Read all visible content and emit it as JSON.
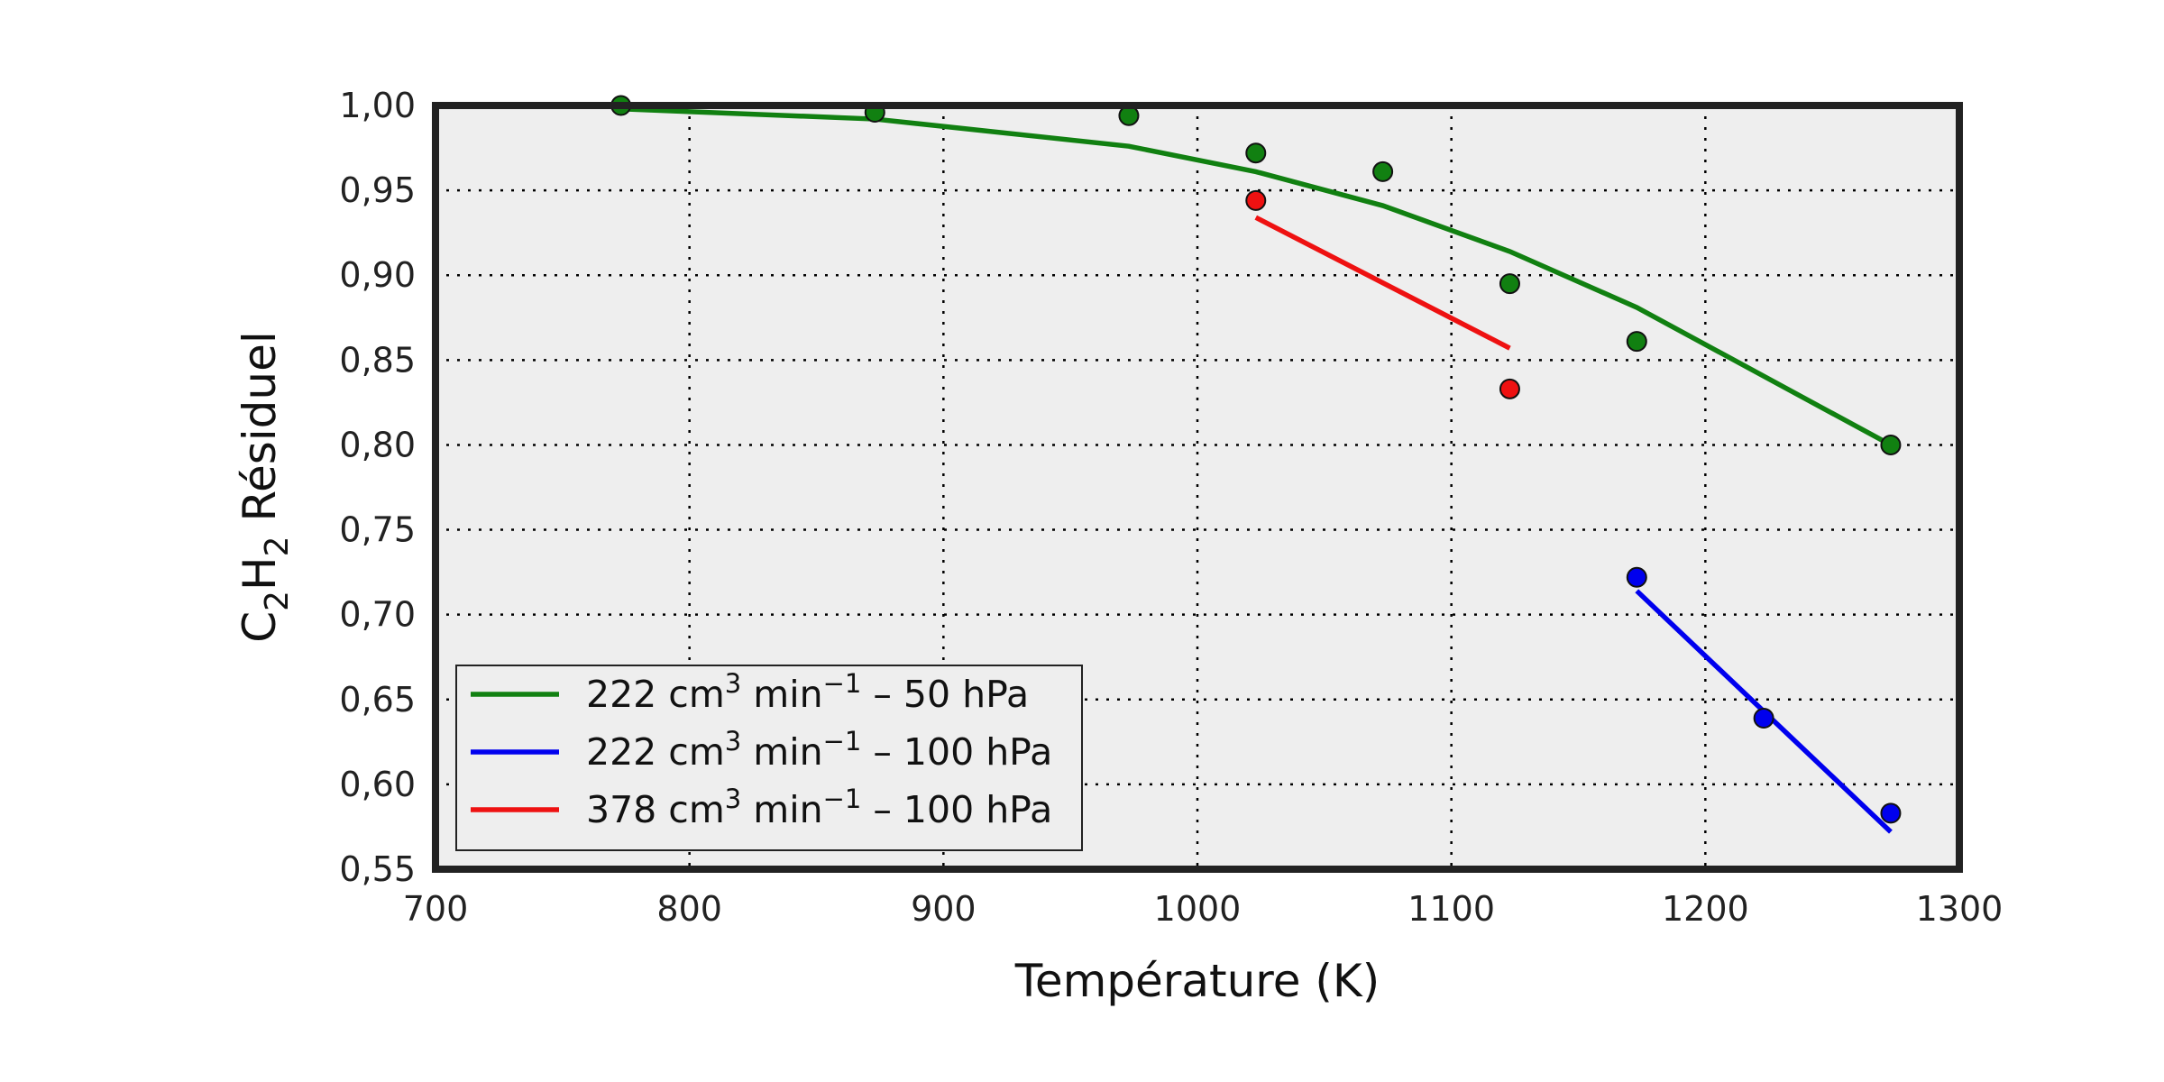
{
  "chart_data": {
    "type": "line",
    "xlabel": "Température (K)",
    "ylabel": "C₂H₂ Résiduel",
    "ylabel_parts": {
      "pre": "C",
      "sub1": "2",
      "mid": "H",
      "sub2": "2",
      "post": " Résiduel"
    },
    "xlim": [
      700,
      1300
    ],
    "ylim": [
      0.55,
      1.0
    ],
    "x_ticks": [
      700,
      800,
      900,
      1000,
      1100,
      1200,
      1300
    ],
    "x_tick_labels": [
      "700",
      "800",
      "900",
      "1000",
      "1100",
      "1200",
      "1300"
    ],
    "y_ticks": [
      0.55,
      0.6,
      0.65,
      0.7,
      0.75,
      0.8,
      0.85,
      0.9,
      0.95,
      1.0
    ],
    "y_tick_labels": [
      "0,55",
      "0,60",
      "0,65",
      "0,70",
      "0,75",
      "0,80",
      "0,85",
      "0,90",
      "0,95",
      "1,00"
    ],
    "grid": true,
    "legend_position": "lower-left",
    "background_color": "#eeeeee",
    "series": [
      {
        "name": "222 cm³ min⁻¹ – 50 hPa",
        "legend_parts": {
          "a": "222 cm",
          "sup1": "3",
          "b": " min",
          "sup2": "−1",
          "c": " – 50 hPa"
        },
        "color": "#118011",
        "points": [
          {
            "x": 773,
            "y": 1.0
          },
          {
            "x": 873,
            "y": 0.996
          },
          {
            "x": 973,
            "y": 0.994
          },
          {
            "x": 1023,
            "y": 0.972
          },
          {
            "x": 1073,
            "y": 0.961
          },
          {
            "x": 1123,
            "y": 0.895
          },
          {
            "x": 1173,
            "y": 0.861
          },
          {
            "x": 1273,
            "y": 0.8
          }
        ],
        "fit": [
          {
            "x": 773,
            "y": 0.998
          },
          {
            "x": 873,
            "y": 0.992
          },
          {
            "x": 973,
            "y": 0.976
          },
          {
            "x": 1023,
            "y": 0.961
          },
          {
            "x": 1073,
            "y": 0.941
          },
          {
            "x": 1123,
            "y": 0.914
          },
          {
            "x": 1173,
            "y": 0.881
          },
          {
            "x": 1273,
            "y": 0.8
          }
        ]
      },
      {
        "name": "222 cm³ min⁻¹ – 100 hPa",
        "legend_parts": {
          "a": "222 cm",
          "sup1": "3",
          "b": " min",
          "sup2": "−1",
          "c": " – 100 hPa"
        },
        "color": "#0000ee",
        "points": [
          {
            "x": 1173,
            "y": 0.722
          },
          {
            "x": 1223,
            "y": 0.639
          },
          {
            "x": 1273,
            "y": 0.583
          }
        ],
        "fit": [
          {
            "x": 1173,
            "y": 0.714
          },
          {
            "x": 1273,
            "y": 0.572
          }
        ]
      },
      {
        "name": "378 cm³ min⁻¹ – 100 hPa",
        "legend_parts": {
          "a": "378 cm",
          "sup1": "3",
          "b": " min",
          "sup2": "−1",
          "c": " – 100 hPa"
        },
        "color": "#ee1111",
        "points": [
          {
            "x": 1023,
            "y": 0.944
          },
          {
            "x": 1123,
            "y": 0.833
          }
        ],
        "fit": [
          {
            "x": 1023,
            "y": 0.934
          },
          {
            "x": 1123,
            "y": 0.857
          }
        ]
      }
    ]
  }
}
